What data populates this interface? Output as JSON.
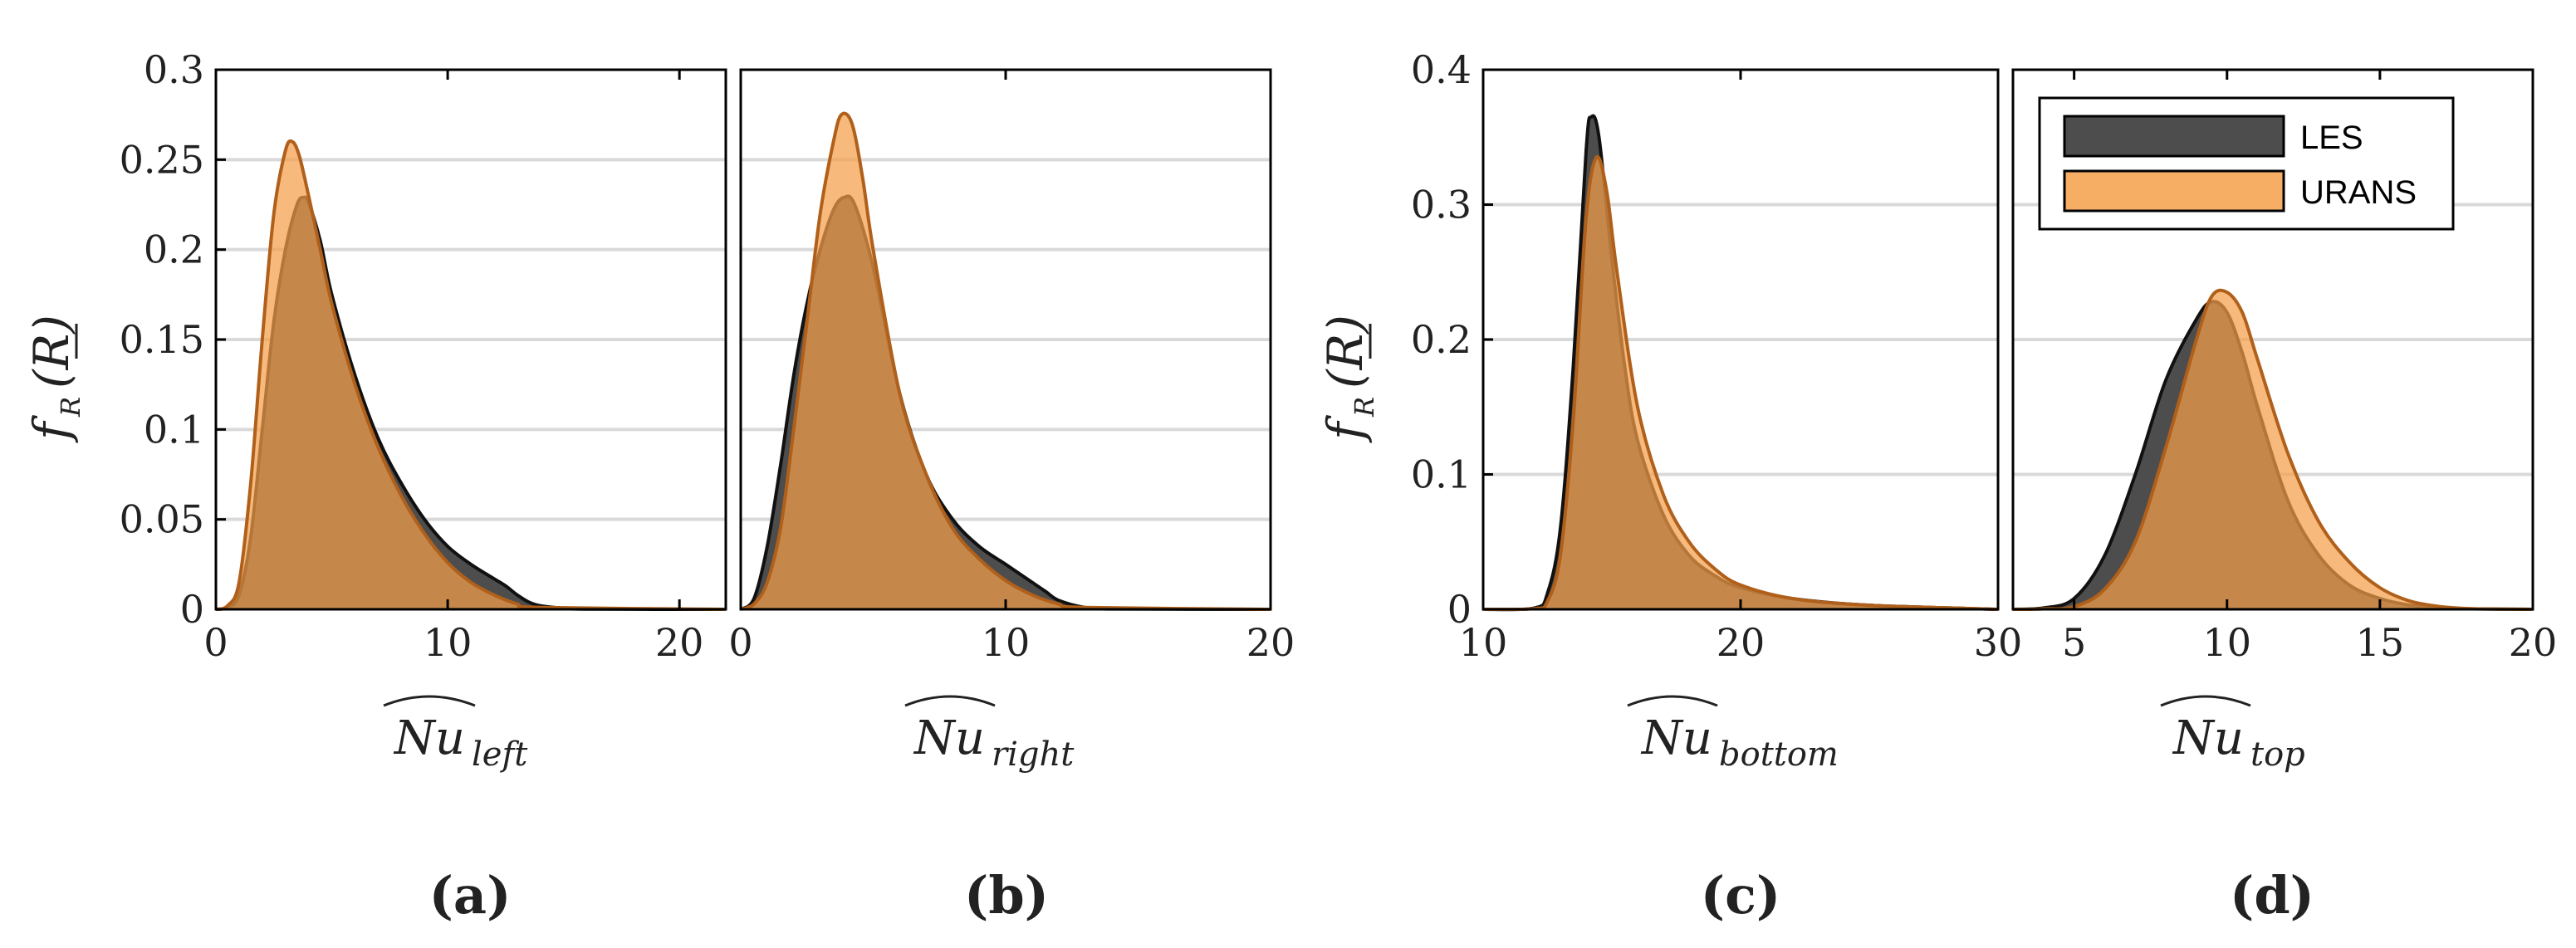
{
  "chart_data": [
    {
      "id": "a",
      "type": "area",
      "panel_label": "(a)",
      "xlabel": {
        "base": "Nu",
        "sub": "left"
      },
      "ylabel": {
        "base": "f",
        "sub": "R",
        "arg": "(R)"
      },
      "xlim": [
        0,
        22
      ],
      "ylim": [
        0,
        0.3
      ],
      "xticks": [
        0,
        10,
        20
      ],
      "yticks": [
        0,
        0.05,
        0.1,
        0.15,
        0.2,
        0.25,
        0.3
      ],
      "ytick_labels": [
        "0",
        "0.05",
        "0.1",
        "0.15",
        "0.2",
        "0.25",
        "0.3"
      ],
      "series": [
        {
          "name": "LES",
          "x": [
            0,
            0.5,
            1,
            1.5,
            2,
            2.5,
            3,
            3.5,
            3.8,
            4,
            4.5,
            5,
            6,
            7,
            8,
            9,
            10,
            11,
            12,
            12.5,
            13,
            13.5,
            14,
            15,
            16,
            22
          ],
          "y": [
            0,
            0.001,
            0.008,
            0.04,
            0.1,
            0.16,
            0.2,
            0.225,
            0.229,
            0.226,
            0.205,
            0.175,
            0.13,
            0.095,
            0.07,
            0.05,
            0.035,
            0.025,
            0.017,
            0.013,
            0.008,
            0.004,
            0.002,
            0.0006,
            0.0001,
            0
          ]
        },
        {
          "name": "URANS",
          "x": [
            0,
            0.5,
            1,
            1.5,
            2,
            2.5,
            3,
            3.3,
            3.6,
            4,
            4.5,
            5,
            6,
            7,
            8,
            9,
            10,
            11,
            12,
            13,
            14,
            22
          ],
          "y": [
            0,
            0.002,
            0.015,
            0.07,
            0.15,
            0.22,
            0.255,
            0.26,
            0.252,
            0.23,
            0.2,
            0.17,
            0.125,
            0.09,
            0.063,
            0.042,
            0.026,
            0.015,
            0.008,
            0.003,
            0.001,
            0
          ]
        }
      ]
    },
    {
      "id": "b",
      "type": "area",
      "panel_label": "(b)",
      "xlabel": {
        "base": "Nu",
        "sub": "right"
      },
      "ylabel": null,
      "xlim": [
        0,
        20
      ],
      "ylim": [
        0,
        0.3
      ],
      "xticks": [
        0,
        10,
        20
      ],
      "yticks": [],
      "ytick_labels": [],
      "series": [
        {
          "name": "LES",
          "x": [
            0,
            0.5,
            1,
            1.5,
            2,
            2.5,
            3,
            3.5,
            3.9,
            4.3,
            5,
            6,
            7,
            8,
            9,
            10,
            11,
            11.5,
            12,
            13,
            14,
            20
          ],
          "y": [
            0,
            0.006,
            0.035,
            0.08,
            0.13,
            0.17,
            0.2,
            0.222,
            0.229,
            0.225,
            0.19,
            0.12,
            0.075,
            0.05,
            0.035,
            0.025,
            0.015,
            0.01,
            0.005,
            0.001,
            0.0002,
            0
          ]
        },
        {
          "name": "URANS",
          "x": [
            0,
            0.5,
            1,
            1.5,
            2,
            2.5,
            3,
            3.5,
            3.8,
            4.2,
            4.6,
            5,
            6,
            7,
            8,
            9,
            10,
            11,
            12,
            13,
            20
          ],
          "y": [
            0,
            0.003,
            0.015,
            0.045,
            0.1,
            0.16,
            0.22,
            0.26,
            0.275,
            0.27,
            0.24,
            0.2,
            0.12,
            0.075,
            0.045,
            0.028,
            0.016,
            0.008,
            0.003,
            0.001,
            0
          ]
        }
      ]
    },
    {
      "id": "c",
      "type": "area",
      "panel_label": "(c)",
      "xlabel": {
        "base": "Nu",
        "sub": "bottom"
      },
      "ylabel": {
        "base": "f",
        "sub": "R",
        "arg": "(R)"
      },
      "xlim": [
        10,
        30
      ],
      "ylim": [
        0,
        0.4
      ],
      "xticks": [
        10,
        20,
        30
      ],
      "yticks": [
        0,
        0.1,
        0.2,
        0.3,
        0.4
      ],
      "ytick_labels": [
        "0",
        "0.1",
        "0.2",
        "0.3",
        "0.4"
      ],
      "series": [
        {
          "name": "LES",
          "x": [
            10,
            12,
            12.5,
            13,
            13.5,
            14,
            14.2,
            14.5,
            15,
            15.5,
            16,
            17,
            18,
            19,
            20,
            22,
            25,
            30
          ],
          "y": [
            0,
            0.001,
            0.012,
            0.06,
            0.18,
            0.34,
            0.365,
            0.35,
            0.26,
            0.18,
            0.125,
            0.07,
            0.04,
            0.025,
            0.016,
            0.008,
            0.003,
            0
          ]
        },
        {
          "name": "URANS",
          "x": [
            10,
            12,
            12.5,
            13,
            13.5,
            14,
            14.4,
            14.8,
            15.2,
            16,
            17,
            18,
            19,
            20,
            22,
            25,
            30
          ],
          "y": [
            0,
            0.0005,
            0.006,
            0.04,
            0.14,
            0.29,
            0.335,
            0.31,
            0.25,
            0.15,
            0.085,
            0.05,
            0.03,
            0.018,
            0.008,
            0.003,
            0
          ]
        }
      ]
    },
    {
      "id": "d",
      "type": "area",
      "panel_label": "(d)",
      "xlabel": {
        "base": "Nu",
        "sub": "top"
      },
      "ylabel": null,
      "xlim": [
        3,
        20
      ],
      "ylim": [
        0,
        0.4
      ],
      "xticks": [
        5,
        10,
        15,
        20
      ],
      "yticks": [],
      "ytick_labels": [],
      "legend": {
        "position": "top-left",
        "entries": [
          "LES",
          "URANS"
        ]
      },
      "series": [
        {
          "name": "LES",
          "x": [
            3,
            4,
            5,
            6,
            7,
            8,
            9,
            9.5,
            10,
            10.5,
            11,
            12,
            13,
            14,
            15,
            16,
            17,
            18,
            20
          ],
          "y": [
            0,
            0.001,
            0.008,
            0.04,
            0.1,
            0.17,
            0.215,
            0.228,
            0.22,
            0.19,
            0.15,
            0.08,
            0.04,
            0.018,
            0.008,
            0.003,
            0.001,
            0.0003,
            0
          ]
        },
        {
          "name": "URANS",
          "x": [
            3,
            4,
            5,
            6,
            7,
            8,
            9,
            9.5,
            10,
            10.5,
            11,
            12,
            13,
            14,
            15,
            16,
            17,
            18,
            20
          ],
          "y": [
            0,
            0.0003,
            0.002,
            0.015,
            0.05,
            0.12,
            0.2,
            0.232,
            0.235,
            0.22,
            0.185,
            0.115,
            0.065,
            0.035,
            0.016,
            0.006,
            0.002,
            0.0005,
            0
          ]
        }
      ]
    }
  ],
  "legend": {
    "entries": [
      "LES",
      "URANS"
    ]
  },
  "colors": {
    "les": "#4d4d4d",
    "urans": "#f5a04a",
    "grid": "#d9d9d9",
    "axis": "#000000"
  }
}
